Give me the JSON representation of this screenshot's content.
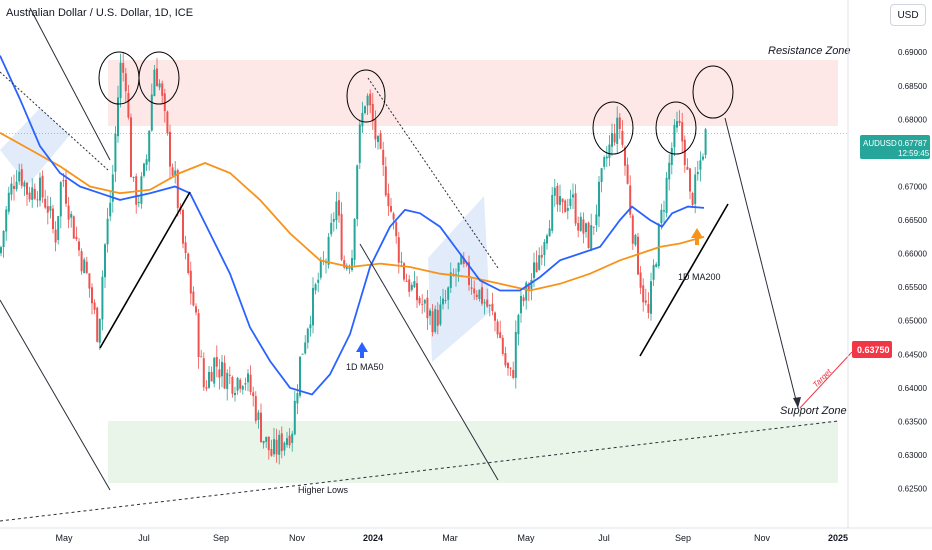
{
  "header": {
    "symbol_title": "Australian Dollar / U.S. Dollar, 1D, ICE",
    "currency_button": "USD"
  },
  "colors": {
    "up": "#26a69a",
    "down": "#ef5350",
    "ma50": "#2962ff",
    "ma200": "#f7931a",
    "resistance_fill": "#fde3e3",
    "support_fill": "#e4f3e4",
    "price_tag": "#26a69a",
    "target_tag": "#f23645"
  },
  "price_tag": {
    "symbol": "AUDUSD",
    "price": "0.67787",
    "countdown": "12:59:45"
  },
  "target_tag": {
    "price": "0.63750"
  },
  "annotations": {
    "resistance": "Resistance Zone",
    "support": "Support Zone",
    "higher_lows": "Higher Lows",
    "ma50": "1D MA50",
    "ma200": "1D MA200",
    "target": "Target"
  },
  "chart_data": {
    "type": "candlestick",
    "x_ticks": [
      "May",
      "Jul",
      "Sep",
      "Nov",
      "2024",
      "Mar",
      "May",
      "Jul",
      "Sep",
      "Nov",
      "2025"
    ],
    "y_ticks": [
      "0.69000",
      "0.68500",
      "0.68000",
      "0.67500",
      "0.67000",
      "0.66500",
      "0.66000",
      "0.65500",
      "0.65000",
      "0.64500",
      "0.64000",
      "0.63500",
      "0.63000",
      "0.62500"
    ],
    "ylim": [
      0.6215,
      0.6945
    ],
    "resistance_zone": [
      0.6805,
      0.69
    ],
    "support_zone": [
      0.627,
      0.6365
    ],
    "current_price": 0.67787,
    "target_price": 0.6375,
    "price_path": [
      [
        0,
        0.66
      ],
      [
        8,
        0.668
      ],
      [
        18,
        0.673
      ],
      [
        28,
        0.669
      ],
      [
        38,
        0.67
      ],
      [
        48,
        0.667
      ],
      [
        55,
        0.662
      ],
      [
        62,
        0.672
      ],
      [
        70,
        0.666
      ],
      [
        78,
        0.661
      ],
      [
        88,
        0.656
      ],
      [
        98,
        0.648
      ],
      [
        104,
        0.66
      ],
      [
        112,
        0.67
      ],
      [
        120,
        0.688
      ],
      [
        126,
        0.686
      ],
      [
        132,
        0.67
      ],
      [
        138,
        0.668
      ],
      [
        146,
        0.673
      ],
      [
        154,
        0.688
      ],
      [
        160,
        0.685
      ],
      [
        168,
        0.676
      ],
      [
        176,
        0.67
      ],
      [
        184,
        0.66
      ],
      [
        194,
        0.652
      ],
      [
        204,
        0.64
      ],
      [
        214,
        0.644
      ],
      [
        224,
        0.642
      ],
      [
        234,
        0.641
      ],
      [
        244,
        0.642
      ],
      [
        252,
        0.639
      ],
      [
        262,
        0.633
      ],
      [
        272,
        0.63
      ],
      [
        282,
        0.632
      ],
      [
        292,
        0.634
      ],
      [
        300,
        0.644
      ],
      [
        308,
        0.65
      ],
      [
        318,
        0.656
      ],
      [
        328,
        0.66
      ],
      [
        336,
        0.668
      ],
      [
        344,
        0.658
      ],
      [
        352,
        0.66
      ],
      [
        358,
        0.676
      ],
      [
        366,
        0.684
      ],
      [
        372,
        0.68
      ],
      [
        380,
        0.674
      ],
      [
        388,
        0.669
      ],
      [
        396,
        0.662
      ],
      [
        404,
        0.657
      ],
      [
        414,
        0.654
      ],
      [
        424,
        0.652
      ],
      [
        434,
        0.65
      ],
      [
        444,
        0.652
      ],
      [
        452,
        0.656
      ],
      [
        460,
        0.658
      ],
      [
        470,
        0.656
      ],
      [
        480,
        0.654
      ],
      [
        488,
        0.652
      ],
      [
        498,
        0.649
      ],
      [
        506,
        0.643
      ],
      [
        512,
        0.641
      ],
      [
        518,
        0.651
      ],
      [
        526,
        0.654
      ],
      [
        536,
        0.658
      ],
      [
        546,
        0.664
      ],
      [
        554,
        0.668
      ],
      [
        562,
        0.666
      ],
      [
        570,
        0.669
      ],
      [
        580,
        0.664
      ],
      [
        590,
        0.662
      ],
      [
        598,
        0.668
      ],
      [
        606,
        0.674
      ],
      [
        614,
        0.678
      ],
      [
        620,
        0.679
      ],
      [
        626,
        0.672
      ],
      [
        634,
        0.662
      ],
      [
        642,
        0.655
      ],
      [
        648,
        0.65
      ],
      [
        654,
        0.658
      ],
      [
        660,
        0.664
      ],
      [
        666,
        0.67
      ],
      [
        672,
        0.676
      ],
      [
        678,
        0.679
      ],
      [
        684,
        0.676
      ],
      [
        690,
        0.668
      ],
      [
        696,
        0.67
      ],
      [
        702,
        0.675
      ],
      [
        706,
        0.678
      ]
    ],
    "ma50_path": [
      [
        0,
        0.6895
      ],
      [
        20,
        0.683
      ],
      [
        40,
        0.676
      ],
      [
        60,
        0.672
      ],
      [
        80,
        0.67
      ],
      [
        100,
        0.669
      ],
      [
        120,
        0.668
      ],
      [
        150,
        0.669
      ],
      [
        175,
        0.67
      ],
      [
        190,
        0.669
      ],
      [
        210,
        0.663
      ],
      [
        230,
        0.657
      ],
      [
        250,
        0.649
      ],
      [
        270,
        0.644
      ],
      [
        290,
        0.64
      ],
      [
        312,
        0.639
      ],
      [
        330,
        0.642
      ],
      [
        350,
        0.648
      ],
      [
        370,
        0.658
      ],
      [
        390,
        0.664
      ],
      [
        405,
        0.6665
      ],
      [
        420,
        0.666
      ],
      [
        440,
        0.664
      ],
      [
        460,
        0.66
      ],
      [
        480,
        0.656
      ],
      [
        500,
        0.6545
      ],
      [
        520,
        0.6545
      ],
      [
        540,
        0.6565
      ],
      [
        560,
        0.659
      ],
      [
        580,
        0.66
      ],
      [
        600,
        0.661
      ],
      [
        620,
        0.665
      ],
      [
        632,
        0.667
      ],
      [
        650,
        0.665
      ],
      [
        662,
        0.664
      ],
      [
        672,
        0.666
      ],
      [
        688,
        0.667
      ],
      [
        704,
        0.6668
      ]
    ],
    "ma200_path": [
      [
        0,
        0.678
      ],
      [
        30,
        0.6755
      ],
      [
        60,
        0.673
      ],
      [
        90,
        0.67
      ],
      [
        120,
        0.669
      ],
      [
        150,
        0.6695
      ],
      [
        180,
        0.672
      ],
      [
        205,
        0.6735
      ],
      [
        230,
        0.672
      ],
      [
        260,
        0.668
      ],
      [
        290,
        0.663
      ],
      [
        320,
        0.659
      ],
      [
        350,
        0.658
      ],
      [
        380,
        0.6585
      ],
      [
        410,
        0.658
      ],
      [
        440,
        0.657
      ],
      [
        470,
        0.6565
      ],
      [
        500,
        0.6555
      ],
      [
        530,
        0.6545
      ],
      [
        560,
        0.6555
      ],
      [
        590,
        0.657
      ],
      [
        620,
        0.659
      ],
      [
        640,
        0.66
      ],
      [
        660,
        0.661
      ],
      [
        680,
        0.6615
      ],
      [
        704,
        0.6625
      ]
    ]
  }
}
